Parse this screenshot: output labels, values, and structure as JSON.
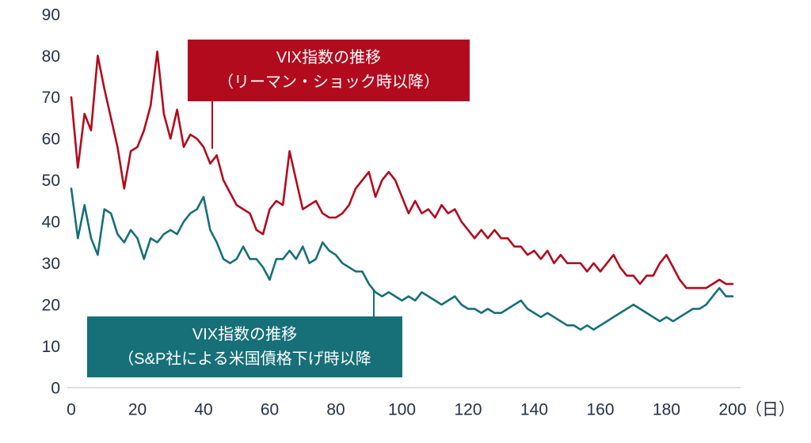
{
  "chart_data": {
    "type": "line",
    "title": "",
    "xlabel": "（日）",
    "ylabel": "",
    "xlim": [
      0,
      200
    ],
    "ylim": [
      0,
      90
    ],
    "x_ticks": [
      0,
      20,
      40,
      60,
      80,
      100,
      120,
      140,
      160,
      180,
      200
    ],
    "y_ticks": [
      0,
      10,
      20,
      30,
      40,
      50,
      60,
      70,
      80,
      90
    ],
    "grid": false,
    "axis_color": "#223246",
    "x": [
      0,
      2,
      4,
      6,
      8,
      10,
      12,
      14,
      16,
      18,
      20,
      22,
      24,
      26,
      28,
      30,
      32,
      34,
      36,
      38,
      40,
      42,
      44,
      46,
      48,
      50,
      52,
      54,
      56,
      58,
      60,
      62,
      64,
      66,
      68,
      70,
      72,
      74,
      76,
      78,
      80,
      82,
      84,
      86,
      88,
      90,
      92,
      94,
      96,
      98,
      100,
      102,
      104,
      106,
      108,
      110,
      112,
      114,
      116,
      118,
      120,
      122,
      124,
      126,
      128,
      130,
      132,
      134,
      136,
      138,
      140,
      142,
      144,
      146,
      148,
      150,
      152,
      154,
      156,
      158,
      160,
      162,
      164,
      166,
      168,
      170,
      172,
      174,
      176,
      178,
      180,
      182,
      184,
      186,
      188,
      190,
      192,
      194,
      196,
      198,
      200
    ],
    "series": [
      {
        "name": "VIX指数の推移（リーマン・ショック時以降）",
        "color": "#b20b1e",
        "values": [
          70,
          53,
          66,
          62,
          80,
          72,
          65,
          58,
          48,
          57,
          58,
          62,
          68,
          81,
          66,
          60,
          67,
          58,
          61,
          60,
          58,
          54,
          56,
          50,
          47,
          44,
          43,
          42,
          38,
          37,
          43,
          45,
          44,
          57,
          50,
          43,
          44,
          45,
          42,
          41,
          41,
          42,
          44,
          48,
          50,
          52,
          46,
          50,
          52,
          50,
          46,
          42,
          45,
          42,
          43,
          41,
          44,
          42,
          43,
          40,
          38,
          36,
          38,
          36,
          38,
          36,
          36,
          34,
          34,
          32,
          33,
          31,
          33,
          30,
          32,
          30,
          30,
          30,
          28,
          30,
          28,
          30,
          32,
          29,
          27,
          27,
          25,
          27,
          27,
          30,
          32,
          29,
          26,
          24,
          24,
          24,
          24,
          25,
          26,
          25,
          25
        ]
      },
      {
        "name": "VIX指数の推移（S&P社による米国債格下げ時以降",
        "color": "#176f78",
        "values": [
          48,
          36,
          44,
          36,
          32,
          43,
          42,
          37,
          35,
          38,
          36,
          31,
          36,
          35,
          37,
          38,
          37,
          40,
          42,
          43,
          46,
          38,
          35,
          31,
          30,
          31,
          34,
          31,
          31,
          29,
          26,
          31,
          31,
          33,
          31,
          34,
          30,
          31,
          35,
          33,
          32,
          30,
          29,
          28,
          28,
          25,
          23,
          22,
          23,
          22,
          21,
          22,
          21,
          23,
          22,
          21,
          20,
          21,
          22,
          20,
          19,
          19,
          18,
          19,
          18,
          18,
          19,
          20,
          21,
          19,
          18,
          17,
          18,
          17,
          16,
          15,
          15,
          14,
          15,
          14,
          15,
          16,
          17,
          18,
          19,
          20,
          19,
          18,
          17,
          16,
          17,
          16,
          17,
          18,
          19,
          19,
          20,
          22,
          24,
          22,
          22
        ]
      }
    ],
    "annotations": [
      {
        "id": "lehman",
        "line1": "VIX指数の推移",
        "line2": "（リーマン・ショック時以降）",
        "color": "#b20b1e"
      },
      {
        "id": "sp",
        "line1": "VIX指数の推移",
        "line2": "（S&P社による米国債格下げ時以降",
        "color": "#176f78"
      }
    ]
  }
}
